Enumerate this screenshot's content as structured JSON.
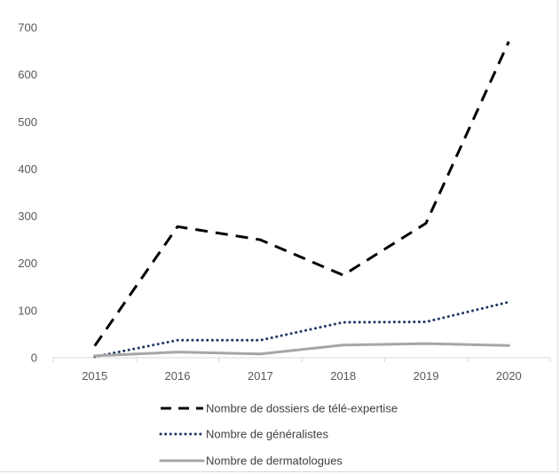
{
  "chart_data": {
    "type": "line",
    "title": "",
    "xlabel": "",
    "ylabel": "",
    "categories": [
      "2015",
      "2016",
      "2017",
      "2018",
      "2019",
      "2020"
    ],
    "ylim": [
      0,
      700
    ],
    "yticks": [
      0,
      100,
      200,
      300,
      400,
      500,
      600,
      700
    ],
    "grid": false,
    "legend_position": "bottom",
    "series": [
      {
        "name": "Nombre de dossiers de télé-expertise",
        "values": [
          25,
          278,
          250,
          175,
          285,
          670
        ],
        "color": "#000000",
        "style": "dashed"
      },
      {
        "name": "Nombre de généralistes",
        "values": [
          2,
          37,
          37,
          75,
          76,
          118
        ],
        "color": "#1f3864",
        "style": "dotted"
      },
      {
        "name": "Nombre de dermatologues",
        "values": [
          4,
          12,
          8,
          27,
          30,
          26
        ],
        "color": "#a6a6a6",
        "style": "solid"
      }
    ]
  }
}
